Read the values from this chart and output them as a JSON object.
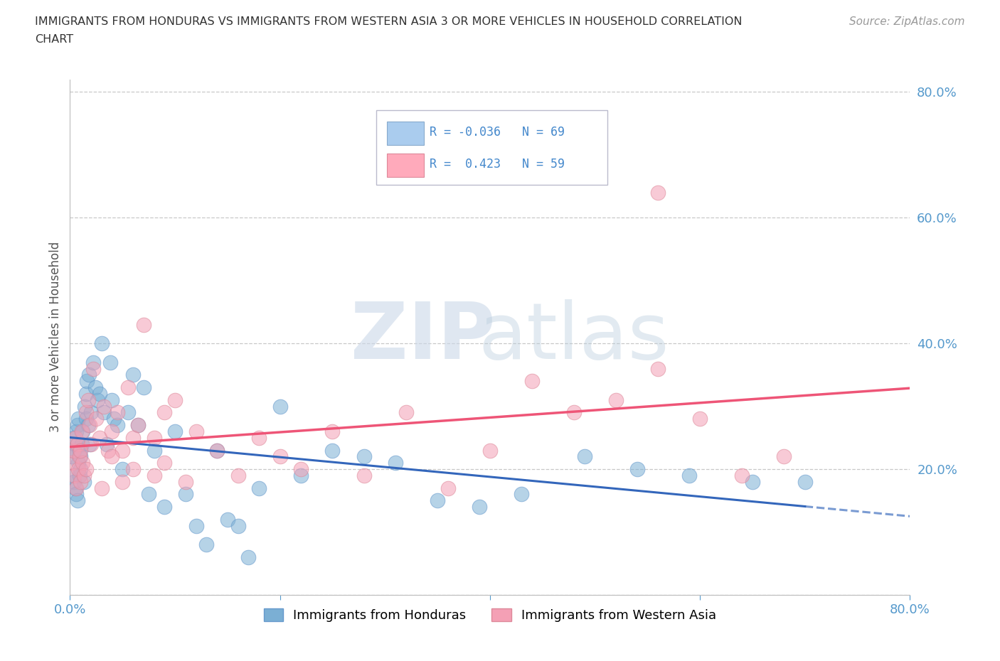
{
  "title": "IMMIGRANTS FROM HONDURAS VS IMMIGRANTS FROM WESTERN ASIA 3 OR MORE VEHICLES IN HOUSEHOLD CORRELATION\nCHART",
  "source": "Source: ZipAtlas.com",
  "ylabel": "3 or more Vehicles in Household",
  "xlim": [
    0.0,
    0.8
  ],
  "ylim": [
    0.0,
    0.82
  ],
  "yticks": [
    0.0,
    0.2,
    0.4,
    0.6,
    0.8
  ],
  "ytick_labels": [
    "",
    "20.0%",
    "40.0%",
    "60.0%",
    "80.0%"
  ],
  "xticks": [
    0.0,
    0.2,
    0.4,
    0.6,
    0.8
  ],
  "xtick_labels": [
    "0.0%",
    "",
    "",
    "",
    "80.0%"
  ],
  "legend_labels": [
    "Immigrants from Honduras",
    "Immigrants from Western Asia"
  ],
  "honduras_color": "#7BAFD4",
  "western_asia_color": "#F4A0B5",
  "honduras_line_color": "#3366BB",
  "western_asia_line_color": "#EE5577",
  "R_honduras": -0.036,
  "N_honduras": 69,
  "R_western_asia": 0.423,
  "N_western_asia": 59,
  "background_color": "#ffffff",
  "honduras_x": [
    0.002,
    0.003,
    0.003,
    0.004,
    0.004,
    0.005,
    0.005,
    0.006,
    0.006,
    0.007,
    0.007,
    0.008,
    0.008,
    0.009,
    0.009,
    0.01,
    0.01,
    0.011,
    0.012,
    0.013,
    0.014,
    0.015,
    0.015,
    0.016,
    0.017,
    0.018,
    0.019,
    0.02,
    0.022,
    0.024,
    0.026,
    0.028,
    0.03,
    0.032,
    0.035,
    0.038,
    0.04,
    0.042,
    0.045,
    0.05,
    0.055,
    0.06,
    0.065,
    0.07,
    0.075,
    0.08,
    0.09,
    0.1,
    0.11,
    0.12,
    0.13,
    0.14,
    0.15,
    0.16,
    0.17,
    0.18,
    0.2,
    0.22,
    0.25,
    0.28,
    0.31,
    0.35,
    0.39,
    0.43,
    0.49,
    0.54,
    0.59,
    0.65,
    0.7
  ],
  "honduras_y": [
    0.22,
    0.25,
    0.19,
    0.23,
    0.18,
    0.24,
    0.17,
    0.26,
    0.16,
    0.27,
    0.15,
    0.28,
    0.21,
    0.23,
    0.19,
    0.22,
    0.2,
    0.24,
    0.26,
    0.18,
    0.3,
    0.32,
    0.28,
    0.34,
    0.27,
    0.35,
    0.24,
    0.29,
    0.37,
    0.33,
    0.31,
    0.32,
    0.4,
    0.29,
    0.24,
    0.37,
    0.31,
    0.28,
    0.27,
    0.2,
    0.29,
    0.35,
    0.27,
    0.33,
    0.16,
    0.23,
    0.14,
    0.26,
    0.16,
    0.11,
    0.08,
    0.23,
    0.12,
    0.11,
    0.06,
    0.17,
    0.3,
    0.19,
    0.23,
    0.22,
    0.21,
    0.15,
    0.14,
    0.16,
    0.22,
    0.2,
    0.19,
    0.18,
    0.18
  ],
  "western_asia_x": [
    0.002,
    0.003,
    0.004,
    0.005,
    0.006,
    0.007,
    0.008,
    0.009,
    0.01,
    0.011,
    0.012,
    0.013,
    0.015,
    0.017,
    0.019,
    0.022,
    0.025,
    0.028,
    0.032,
    0.036,
    0.04,
    0.045,
    0.05,
    0.055,
    0.06,
    0.065,
    0.07,
    0.08,
    0.09,
    0.1,
    0.11,
    0.12,
    0.14,
    0.16,
    0.18,
    0.2,
    0.22,
    0.25,
    0.28,
    0.32,
    0.36,
    0.4,
    0.44,
    0.48,
    0.52,
    0.56,
    0.6,
    0.64,
    0.68,
    0.56,
    0.09,
    0.08,
    0.06,
    0.05,
    0.04,
    0.03,
    0.02,
    0.015,
    0.01
  ],
  "western_asia_y": [
    0.21,
    0.23,
    0.19,
    0.25,
    0.17,
    0.24,
    0.2,
    0.22,
    0.18,
    0.26,
    0.21,
    0.19,
    0.29,
    0.31,
    0.27,
    0.36,
    0.28,
    0.25,
    0.3,
    0.23,
    0.26,
    0.29,
    0.23,
    0.33,
    0.2,
    0.27,
    0.43,
    0.25,
    0.29,
    0.31,
    0.18,
    0.26,
    0.23,
    0.19,
    0.25,
    0.22,
    0.2,
    0.26,
    0.19,
    0.29,
    0.17,
    0.23,
    0.34,
    0.29,
    0.31,
    0.36,
    0.28,
    0.19,
    0.22,
    0.64,
    0.21,
    0.19,
    0.25,
    0.18,
    0.22,
    0.17,
    0.24,
    0.2,
    0.23
  ]
}
